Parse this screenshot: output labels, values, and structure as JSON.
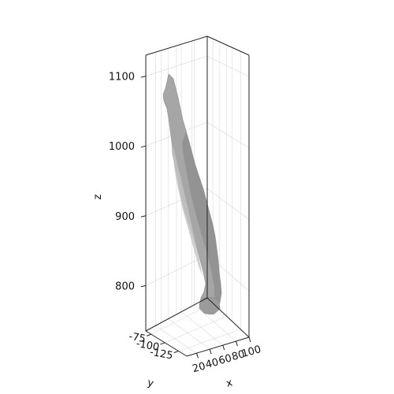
{
  "chart_data": {
    "type": "surface3d",
    "title": "",
    "xlabel": "x",
    "ylabel": "y",
    "zlabel": "z",
    "xticks": [
      20,
      40,
      60,
      80,
      100
    ],
    "yticks": [
      -75,
      -100,
      -125
    ],
    "zticks": [
      800,
      900,
      1000,
      1100
    ],
    "xlim": [
      5,
      100
    ],
    "ylim": [
      -65,
      -140
    ],
    "zlim": [
      735,
      1130
    ],
    "grid": true,
    "legend": "none",
    "surface_color": "#a6a6a6",
    "surface_shade_color": "#8c8c8c",
    "surface_highlight_color": "#c4c4c4"
  }
}
